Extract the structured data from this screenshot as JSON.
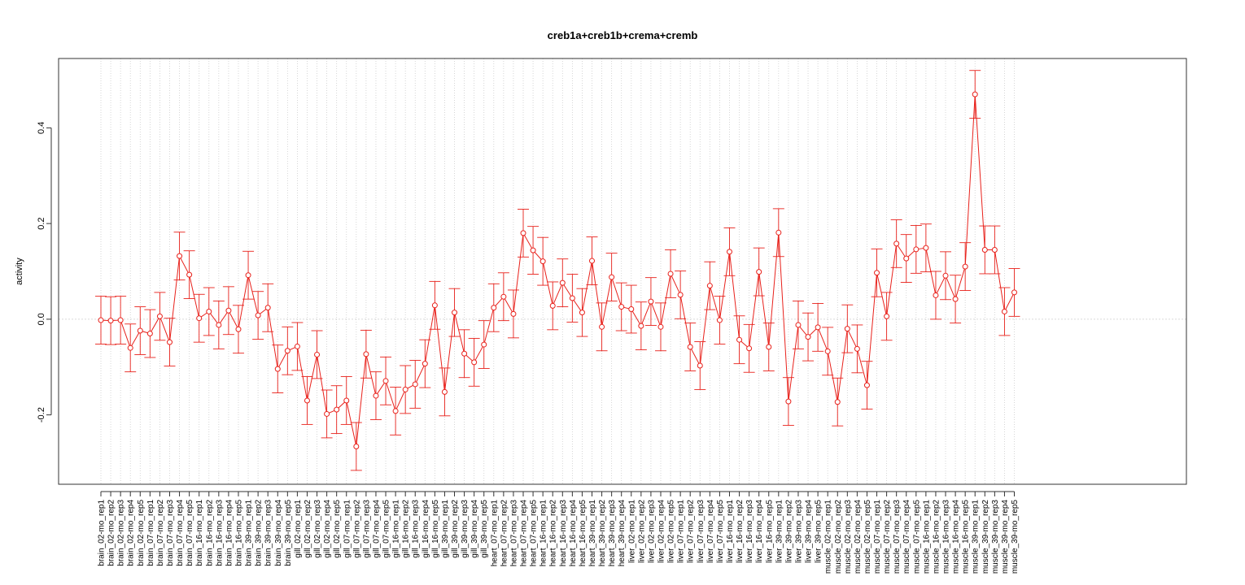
{
  "chart_data": {
    "type": "line",
    "title": "creb1a+creb1b+crema+cremb",
    "xlabel": "",
    "ylabel": "activity",
    "ylim": [
      -0.345,
      0.545
    ],
    "yticks": [
      -0.2,
      0.0,
      0.2,
      0.4
    ],
    "ytick_labels": [
      "-0.2",
      "0.0",
      "0.2",
      "0.4"
    ],
    "grid": true,
    "legend": "none",
    "colors": {
      "series": "#e8211b",
      "grid": "#cccccc",
      "axis": "#333333"
    },
    "categories": [
      "brain_02-mo_rep1",
      "brain_02-mo_rep2",
      "brain_02-mo_rep3",
      "brain_02-mo_rep4",
      "brain_02-mo_rep5",
      "brain_07-mo_rep1",
      "brain_07-mo_rep2",
      "brain_07-mo_rep3",
      "brain_07-mo_rep4",
      "brain_07-mo_rep5",
      "brain_16-mo_rep1",
      "brain_16-mo_rep2",
      "brain_16-mo_rep3",
      "brain_16-mo_rep4",
      "brain_16-mo_rep5",
      "brain_39-mo_rep1",
      "brain_39-mo_rep2",
      "brain_39-mo_rep3",
      "brain_39-mo_rep4",
      "brain_39-mo_rep5",
      "gill_02-mo_rep1",
      "gill_02-mo_rep2",
      "gill_02-mo_rep3",
      "gill_02-mo_rep4",
      "gill_02-mo_rep5",
      "gill_07-mo_rep1",
      "gill_07-mo_rep2",
      "gill_07-mo_rep3",
      "gill_07-mo_rep4",
      "gill_07-mo_rep5",
      "gill_16-mo_rep1",
      "gill_16-mo_rep2",
      "gill_16-mo_rep3",
      "gill_16-mo_rep4",
      "gill_16-mo_rep5",
      "gill_39-mo_rep1",
      "gill_39-mo_rep2",
      "gill_39-mo_rep3",
      "gill_39-mo_rep4",
      "gill_39-mo_rep5",
      "heart_07-mo_rep1",
      "heart_07-mo_rep2",
      "heart_07-mo_rep3",
      "heart_07-mo_rep4",
      "heart_07-mo_rep5",
      "heart_16-mo_rep1",
      "heart_16-mo_rep2",
      "heart_16-mo_rep3",
      "heart_16-mo_rep4",
      "heart_16-mo_rep5",
      "heart_39-mo_rep1",
      "heart_39-mo_rep2",
      "heart_39-mo_rep3",
      "heart_39-mo_rep4",
      "liver_02-mo_rep1",
      "liver_02-mo_rep2",
      "liver_02-mo_rep3",
      "liver_02-mo_rep4",
      "liver_02-mo_rep5",
      "liver_07-mo_rep1",
      "liver_07-mo_rep2",
      "liver_07-mo_rep3",
      "liver_07-mo_rep4",
      "liver_07-mo_rep5",
      "liver_16-mo_rep1",
      "liver_16-mo_rep2",
      "liver_16-mo_rep3",
      "liver_16-mo_rep4",
      "liver_16-mo_rep5",
      "liver_39-mo_rep1",
      "liver_39-mo_rep2",
      "liver_39-mo_rep3",
      "liver_39-mo_rep4",
      "liver_39-mo_rep5",
      "muscle_02-mo_rep1",
      "muscle_02-mo_rep2",
      "muscle_02-mo_rep3",
      "muscle_02-mo_rep4",
      "muscle_02-mo_rep5",
      "muscle_07-mo_rep1",
      "muscle_07-mo_rep2",
      "muscle_07-mo_rep3",
      "muscle_07-mo_rep4",
      "muscle_07-mo_rep5",
      "muscle_16-mo_rep1",
      "muscle_16-mo_rep2",
      "muscle_16-mo_rep3",
      "muscle_16-mo_rep4",
      "muscle_16-mo_rep5",
      "muscle_39-mo_rep1",
      "muscle_39-mo_rep2",
      "muscle_39-mo_rep3",
      "muscle_39-mo_rep4",
      "muscle_39-mo_rep5"
    ],
    "values": [
      -0.002,
      -0.003,
      -0.002,
      -0.06,
      -0.024,
      -0.03,
      0.006,
      -0.048,
      0.132,
      0.093,
      0.002,
      0.016,
      -0.012,
      0.018,
      -0.021,
      0.092,
      0.008,
      0.024,
      -0.104,
      -0.066,
      -0.057,
      -0.17,
      -0.074,
      -0.198,
      -0.189,
      -0.17,
      -0.266,
      -0.073,
      -0.16,
      -0.129,
      -0.192,
      -0.147,
      -0.136,
      -0.093,
      0.029,
      -0.152,
      0.014,
      -0.072,
      -0.09,
      -0.053,
      0.024,
      0.047,
      0.011,
      0.18,
      0.144,
      0.121,
      0.028,
      0.076,
      0.044,
      0.014,
      0.122,
      -0.016,
      0.088,
      0.026,
      0.021,
      -0.014,
      0.037,
      -0.016,
      0.095,
      0.051,
      -0.058,
      -0.097,
      0.07,
      -0.002,
      0.141,
      -0.043,
      -0.061,
      0.099,
      -0.058,
      0.181,
      -0.172,
      -0.012,
      -0.037,
      -0.017,
      -0.067,
      -0.173,
      -0.02,
      -0.062,
      -0.138,
      0.097,
      0.006,
      0.158,
      0.127,
      0.146,
      0.149,
      0.05,
      0.091,
      0.042,
      0.11,
      0.47,
      0.145,
      0.145,
      0.016,
      0.056
    ],
    "error_half_width": 0.05
  }
}
